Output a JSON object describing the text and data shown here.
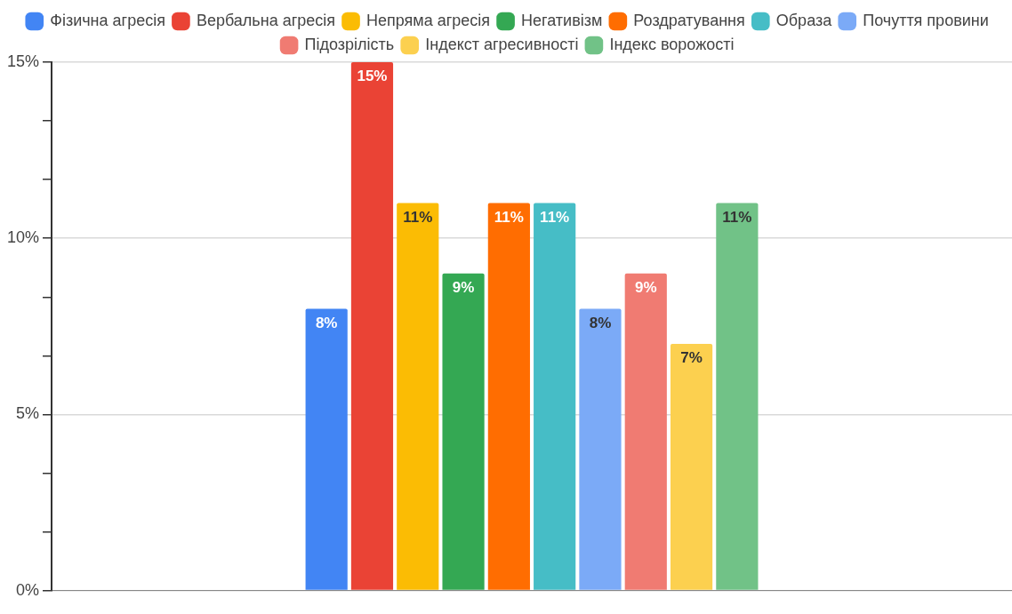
{
  "chart_data": {
    "type": "bar",
    "categories": [
      null
    ],
    "series": [
      {
        "name": "Фізична агресія",
        "color": "#4285f4",
        "values": [
          8
        ],
        "value_labels": [
          "8%"
        ]
      },
      {
        "name": "Вербальна агресія",
        "color": "#ea4335",
        "values": [
          15
        ],
        "value_labels": [
          "15%"
        ]
      },
      {
        "name": "Непряма агресія",
        "color": "#fbbc04",
        "values": [
          11
        ],
        "value_labels": [
          "11%"
        ]
      },
      {
        "name": "Негативізм",
        "color": "#34a853",
        "values": [
          9
        ],
        "value_labels": [
          "9%"
        ]
      },
      {
        "name": "Роздратування",
        "color": "#ff6d01",
        "values": [
          11
        ],
        "value_labels": [
          "11%"
        ]
      },
      {
        "name": "Образа",
        "color": "#46bdc6",
        "values": [
          11
        ],
        "value_labels": [
          "11%"
        ]
      },
      {
        "name": "Почуття провини",
        "color": "#7baaf7",
        "values": [
          8
        ],
        "value_labels": [
          "8%"
        ]
      },
      {
        "name": "Підозрілість",
        "color": "#f07b72",
        "values": [
          9
        ],
        "value_labels": [
          "9%"
        ]
      },
      {
        "name": "Індекст агресивності",
        "color": "#fcd04f",
        "values": [
          7
        ],
        "value_labels": [
          "7%"
        ]
      },
      {
        "name": "Індекс ворожості",
        "color": "#71c287",
        "values": [
          11
        ],
        "value_labels": [
          "11%"
        ]
      }
    ],
    "ylim": [
      0,
      15
    ],
    "yticks": [
      {
        "value": 0,
        "label": "0%"
      },
      {
        "value": 1.667,
        "label": null
      },
      {
        "value": 3.333,
        "label": null
      },
      {
        "value": 5,
        "label": "5%"
      },
      {
        "value": 6.667,
        "label": null
      },
      {
        "value": 8.333,
        "label": null
      },
      {
        "value": 10,
        "label": "10%"
      },
      {
        "value": 11.667,
        "label": null
      },
      {
        "value": 13.333,
        "label": null
      },
      {
        "value": 15,
        "label": "15%"
      }
    ],
    "grid": "y",
    "legend": "top"
  }
}
